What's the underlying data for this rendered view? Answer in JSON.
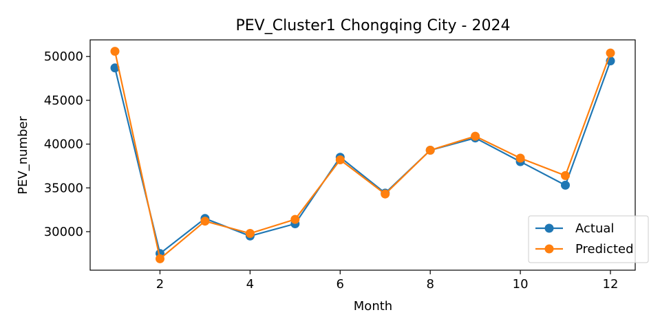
{
  "chart_data": {
    "type": "line",
    "title": "PEV_Cluster1 Chongqing City - 2024",
    "xlabel": "Month",
    "ylabel": "PEV_number",
    "x": [
      1,
      2,
      3,
      4,
      5,
      6,
      7,
      8,
      9,
      10,
      11,
      12
    ],
    "xlim": [
      0.45,
      12.55
    ],
    "ylim": [
      25600,
      51900
    ],
    "xticks": [
      2,
      4,
      6,
      8,
      10,
      12
    ],
    "xtick_labels": [
      "2",
      "4",
      "6",
      "8",
      "10",
      "12"
    ],
    "yticks": [
      30000,
      35000,
      40000,
      45000,
      50000
    ],
    "ytick_labels": [
      "30000",
      "35000",
      "40000",
      "45000",
      "50000"
    ],
    "series": [
      {
        "name": "Actual",
        "color": "#1f77b4",
        "marker": "circle",
        "values": [
          48700,
          27500,
          31500,
          29500,
          30900,
          38500,
          34400,
          39300,
          40700,
          38000,
          35300,
          49500
        ]
      },
      {
        "name": "Predicted",
        "color": "#ff7f0e",
        "marker": "circle",
        "values": [
          50600,
          26900,
          31200,
          29800,
          31400,
          38200,
          34300,
          39300,
          40900,
          38400,
          36400,
          50400
        ]
      }
    ],
    "legend": {
      "position": "lower-right",
      "entries": [
        "Actual",
        "Predicted"
      ]
    },
    "grid": false
  }
}
